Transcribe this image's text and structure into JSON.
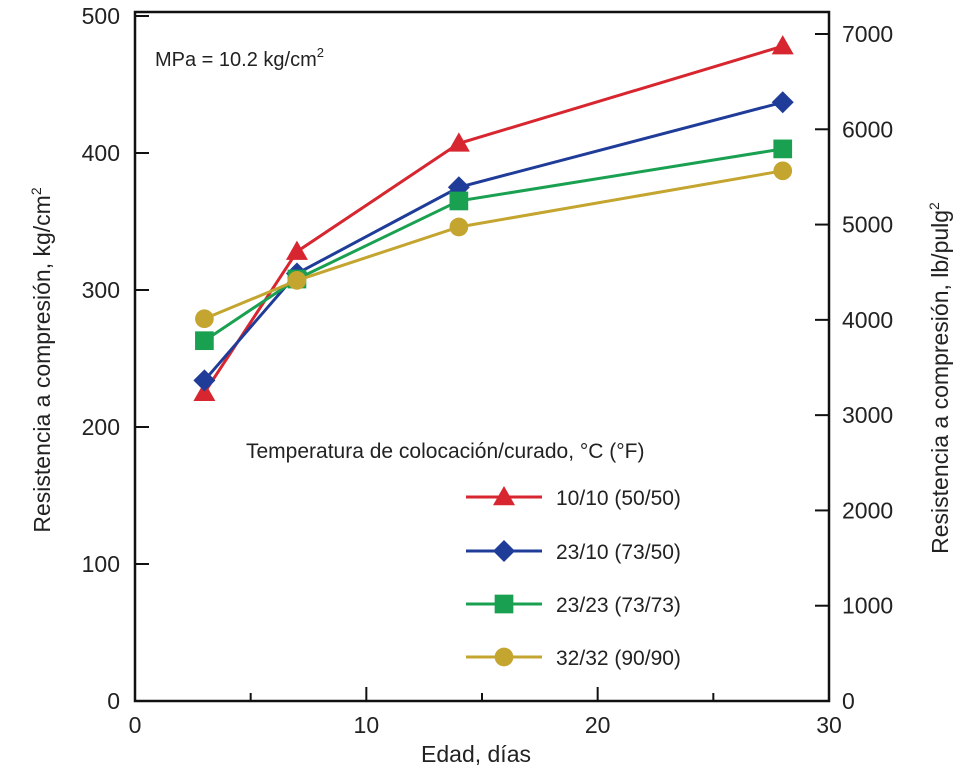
{
  "chart_data": {
    "type": "line",
    "note": "MPa = 10.2 kg/cm",
    "note_superscript": "2",
    "xlabel": "Edad, días",
    "ylabel_left": "Resistencia a compresión, kg/cm",
    "ylabel_left_superscript": "2",
    "ylabel_right": "Resistencia a compresión, lb/pulg",
    "ylabel_right_superscript": "2",
    "xlim": [
      0,
      30
    ],
    "ylim_left": [
      0,
      500
    ],
    "ylim_right": [
      0,
      7000
    ],
    "x_ticks": [
      "0",
      "10",
      "20",
      "30"
    ],
    "y_left_ticks": [
      "0",
      "100",
      "200",
      "300",
      "400",
      "500"
    ],
    "y_right_ticks": [
      "0",
      "1000",
      "2000",
      "3000",
      "4000",
      "5000",
      "6000",
      "7000"
    ],
    "grid": false,
    "legend_title": "Temperatura de colocación/curado, °C  (°F)",
    "legend_position": "bottom-right",
    "series": [
      {
        "name": "10/10 (50/50)",
        "color": "#d7262f",
        "marker": "triangle",
        "x": [
          3,
          7,
          14,
          28
        ],
        "y": [
          225,
          328,
          407,
          478
        ]
      },
      {
        "name": "23/10 (73/50)",
        "color": "#1f3c99",
        "marker": "diamond",
        "x": [
          3,
          7,
          14,
          28
        ],
        "y": [
          234,
          312,
          375,
          437
        ]
      },
      {
        "name": "23/23 (73/73)",
        "color": "#1aa051",
        "marker": "square",
        "x": [
          3,
          7,
          14,
          28
        ],
        "y": [
          263,
          308,
          365,
          403
        ]
      },
      {
        "name": "32/32 (90/90)",
        "color": "#c4a52f",
        "marker": "circle",
        "x": [
          3,
          7,
          14,
          28
        ],
        "y": [
          279,
          307,
          346,
          387
        ]
      }
    ]
  }
}
